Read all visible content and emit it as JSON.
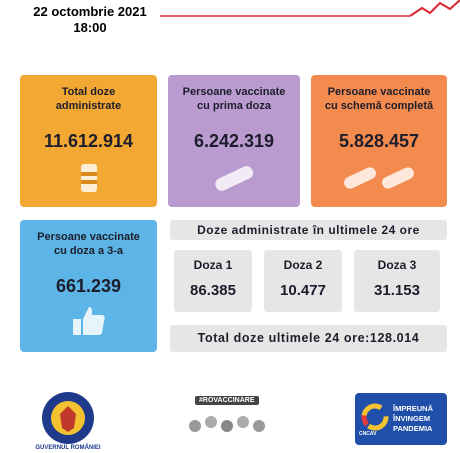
{
  "header": {
    "date": "22 octombrie 2021",
    "time": "18:00"
  },
  "cards": [
    {
      "label": "Total doze administrate",
      "value": "11.612.914"
    },
    {
      "label": "Persoane vaccinate cu prima doza",
      "value": "6.242.319"
    },
    {
      "label": "Persoane vaccinate cu schemă completă",
      "value": "5.828.457"
    },
    {
      "label": "Persoane  vaccinate cu doza a 3-a",
      "value": "661.239"
    }
  ],
  "last24": {
    "title": "Doze administrate în ultimele 24 ore",
    "doses": [
      {
        "label": "Doza 1",
        "value": "86.385"
      },
      {
        "label": "Doza 2",
        "value": "10.477"
      },
      {
        "label": "Doza 3",
        "value": "31.153"
      }
    ],
    "total_label": "Total doze ultimele 24 ore:",
    "total_value": "128.014"
  },
  "footer": {
    "gov": "GUVERNUL ROMÂNIEI",
    "hashtag": "#ROVACCINARE",
    "campaign": [
      "ÎMPREUNĂ",
      "ÎNVINGEM",
      "PANDEMIA"
    ],
    "cncav": "CNCAV"
  }
}
